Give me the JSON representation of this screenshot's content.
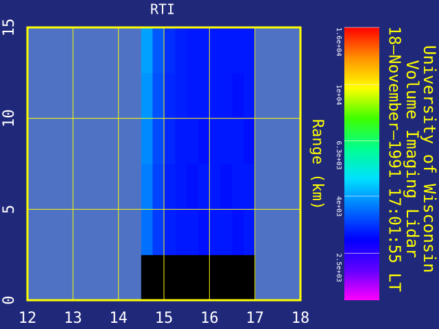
{
  "chart_data": {
    "type": "heatmap",
    "title": "RTI",
    "y_label": "Range (km)",
    "side_texts": [
      "University of Wisconsin",
      "Volume Imaging Lidar",
      "18–November–1991 17:01:55 LT"
    ],
    "xlim": [
      12,
      18
    ],
    "ylim": [
      0,
      15
    ],
    "xticks": [
      12,
      13,
      14,
      15,
      16,
      17,
      18
    ],
    "yticks": [
      0,
      5,
      10,
      15
    ],
    "grid": true,
    "x_edges": [
      14.5,
      14.75,
      15.0,
      15.25,
      15.5,
      15.75,
      16.0,
      16.25,
      16.5,
      16.75,
      17.0
    ],
    "y_edges": [
      0,
      2.5,
      5,
      7.5,
      10,
      12.5,
      15
    ],
    "values": [
      [
        null,
        null,
        null,
        null,
        null,
        null,
        null,
        null,
        null,
        null
      ],
      [
        3600,
        3200,
        3000,
        2950,
        2950,
        2900,
        2950,
        2950,
        2900,
        2950
      ],
      [
        3700,
        3250,
        3000,
        2950,
        2900,
        2950,
        2950,
        2900,
        2950,
        2950
      ],
      [
        3800,
        3300,
        3050,
        2950,
        2950,
        2900,
        2950,
        2950,
        2950,
        2900
      ],
      [
        3900,
        3350,
        3050,
        3000,
        2950,
        2950,
        2950,
        2950,
        2900,
        2950
      ],
      [
        4000,
        3400,
        3100,
        3000,
        2950,
        2950,
        2950,
        2950,
        2950,
        2950
      ]
    ],
    "null_color": "#000000",
    "plot_background": "#4f72c4",
    "axis_color": "#ffff00",
    "colormap": [
      "#ff00ff",
      "#6000ff",
      "#0000ff",
      "#0070ff",
      "#00e0ff",
      "#00ff90",
      "#40ff00",
      "#ffff00",
      "#ff9000",
      "#ff0000"
    ],
    "clim": [
      1700,
      16000
    ],
    "color_log_scale": true,
    "cticks": [
      {
        "value": 2500,
        "label": "2.5e+03"
      },
      {
        "value": 4000,
        "label": "4e+03"
      },
      {
        "value": 6300,
        "label": "6.3e+03"
      },
      {
        "value": 10000,
        "label": "1e+04"
      },
      {
        "value": 16000,
        "label": "1.6e+04"
      }
    ]
  }
}
